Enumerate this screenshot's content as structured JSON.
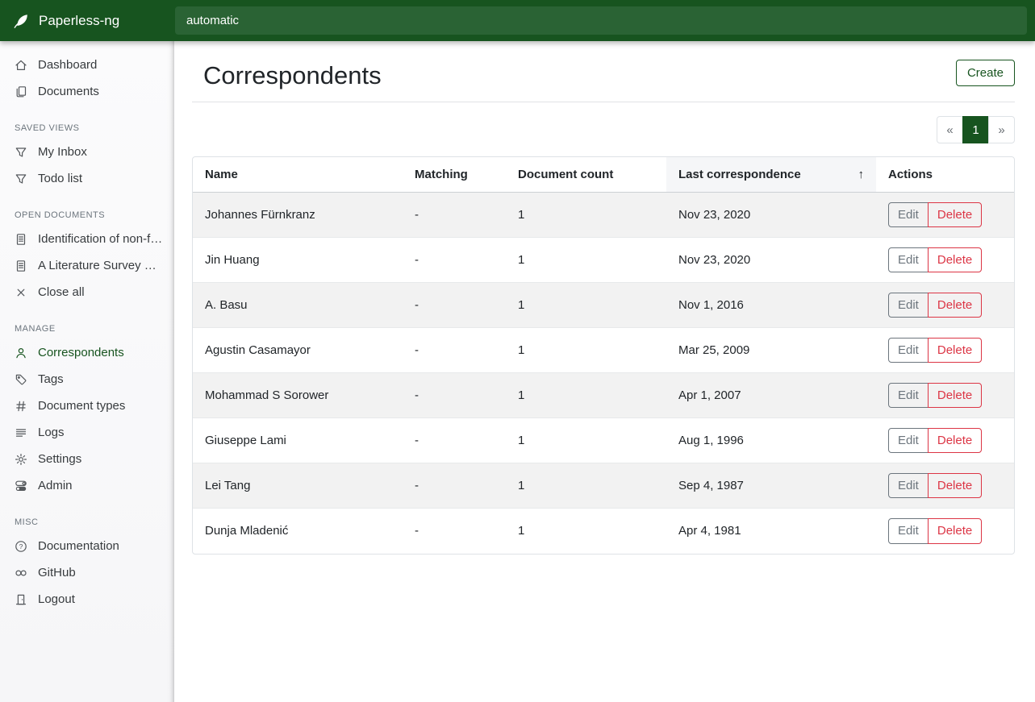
{
  "brand": {
    "title": "Paperless-ng"
  },
  "search": {
    "value": "automatic"
  },
  "sidebar": {
    "sections": [
      {
        "title": "",
        "items": [
          {
            "label": "Dashboard",
            "icon": "home"
          },
          {
            "label": "Documents",
            "icon": "documents"
          }
        ]
      },
      {
        "title": "SAVED VIEWS",
        "items": [
          {
            "label": "My Inbox",
            "icon": "filter"
          },
          {
            "label": "Todo list",
            "icon": "filter"
          }
        ]
      },
      {
        "title": "OPEN DOCUMENTS",
        "items": [
          {
            "label": "Identification of non-fu...",
            "icon": "document"
          },
          {
            "label": "A Literature Survey on ...",
            "icon": "document"
          },
          {
            "label": "Close all",
            "icon": "close"
          }
        ]
      },
      {
        "title": "MANAGE",
        "items": [
          {
            "label": "Correspondents",
            "icon": "person",
            "active": true
          },
          {
            "label": "Tags",
            "icon": "tag"
          },
          {
            "label": "Document types",
            "icon": "hash"
          },
          {
            "label": "Logs",
            "icon": "logs"
          },
          {
            "label": "Settings",
            "icon": "gear"
          },
          {
            "label": "Admin",
            "icon": "toggles"
          }
        ]
      },
      {
        "title": "MISC",
        "items": [
          {
            "label": "Documentation",
            "icon": "question"
          },
          {
            "label": "GitHub",
            "icon": "link"
          },
          {
            "label": "Logout",
            "icon": "door"
          }
        ]
      }
    ]
  },
  "main": {
    "title": "Correspondents",
    "create_label": "Create",
    "pagination": {
      "prev": "«",
      "current": "1",
      "next": "»"
    },
    "table": {
      "headers": [
        "Name",
        "Matching",
        "Document count",
        "Last correspondence",
        "Actions"
      ],
      "sorted_column_index": 3,
      "sort_indicator": "↑",
      "edit_label": "Edit",
      "delete_label": "Delete",
      "rows": [
        {
          "name": "Johannes Fürnkranz",
          "matching": "-",
          "document_count": "1",
          "last_correspondence": "Nov 23, 2020"
        },
        {
          "name": "Jin Huang",
          "matching": "-",
          "document_count": "1",
          "last_correspondence": "Nov 23, 2020"
        },
        {
          "name": "A. Basu",
          "matching": "-",
          "document_count": "1",
          "last_correspondence": "Nov 1, 2016"
        },
        {
          "name": "Agustin Casamayor",
          "matching": "-",
          "document_count": "1",
          "last_correspondence": "Mar 25, 2009"
        },
        {
          "name": "Mohammad S Sorower",
          "matching": "-",
          "document_count": "1",
          "last_correspondence": "Apr 1, 2007"
        },
        {
          "name": "Giuseppe Lami",
          "matching": "-",
          "document_count": "1",
          "last_correspondence": "Aug 1, 1996"
        },
        {
          "name": "Lei Tang",
          "matching": "-",
          "document_count": "1",
          "last_correspondence": "Sep 4, 1987"
        },
        {
          "name": "Dunja Mladenić",
          "matching": "-",
          "document_count": "1",
          "last_correspondence": "Apr 4, 1981"
        }
      ]
    }
  },
  "colors": {
    "navbar_green": "#17541f",
    "search_field_green": "#2a6334",
    "accent_green": "#17541f",
    "delete_red": "#dc3545",
    "edit_gray": "#6c757d",
    "stripe_gray": "#f2f3f3"
  }
}
